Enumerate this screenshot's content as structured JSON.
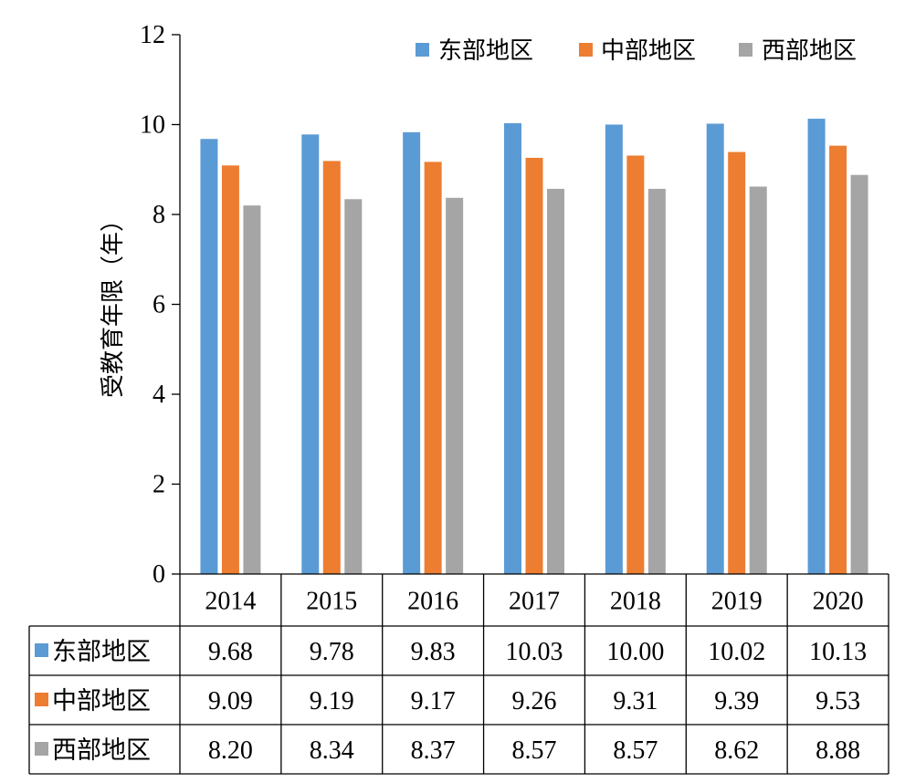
{
  "chart_data": {
    "type": "bar",
    "ylabel": "受教育年限（年）",
    "categories": [
      "2014",
      "2015",
      "2016",
      "2017",
      "2018",
      "2019",
      "2020"
    ],
    "ylim": [
      0,
      12
    ],
    "yticks": [
      "0",
      "2",
      "4",
      "6",
      "8",
      "10",
      "12"
    ],
    "grid": false,
    "legend_position": "top-right",
    "data_table": true,
    "series": [
      {
        "name": "东部地区",
        "color": "#5b9bd5",
        "values": [
          9.68,
          9.78,
          9.83,
          10.03,
          10.0,
          10.02,
          10.13
        ],
        "labels": [
          "9.68",
          "9.78",
          "9.83",
          "10.03",
          "10.00",
          "10.02",
          "10.13"
        ]
      },
      {
        "name": "中部地区",
        "color": "#ed7d31",
        "values": [
          9.09,
          9.19,
          9.17,
          9.26,
          9.31,
          9.39,
          9.53
        ],
        "labels": [
          "9.09",
          "9.19",
          "9.17",
          "9.26",
          "9.31",
          "9.39",
          "9.53"
        ]
      },
      {
        "name": "西部地区",
        "color": "#a5a5a5",
        "values": [
          8.2,
          8.34,
          8.37,
          8.57,
          8.57,
          8.62,
          8.88
        ],
        "labels": [
          "8.20",
          "8.34",
          "8.37",
          "8.57",
          "8.57",
          "8.62",
          "8.88"
        ]
      }
    ]
  }
}
